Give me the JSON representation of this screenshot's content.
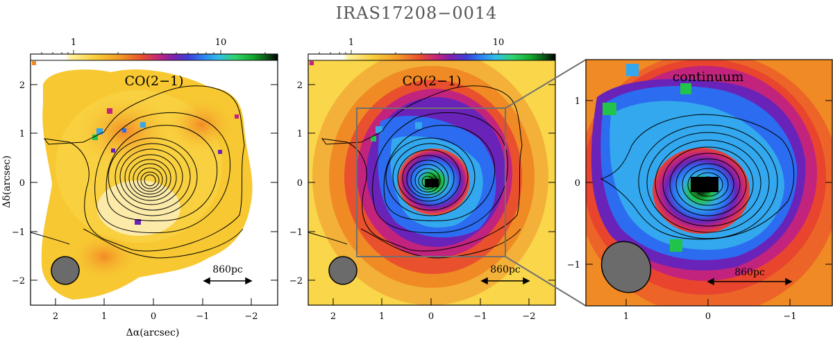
{
  "figure_title": "IRAS17208−0014",
  "colorbar_labels": [
    "1",
    "10"
  ],
  "panels": [
    {
      "line_label": "CO(2−1)",
      "x_ticks": [
        "2",
        "1",
        "0",
        "−1",
        "−2"
      ],
      "y_ticks": [
        "2",
        "1",
        "0",
        "−1",
        "−2"
      ],
      "xlabel": "Δα(arcsec)",
      "ylabel": "Δδ(arcsec)",
      "scalebar": "860pc"
    },
    {
      "line_label": "CO(2−1)",
      "x_ticks": [
        "2",
        "1",
        "0",
        "−1",
        "−2"
      ],
      "y_ticks": [
        "2",
        "1",
        "0",
        "−1",
        "−2"
      ],
      "scalebar": "860pc"
    },
    {
      "line_label": "continuum",
      "x_ticks": [
        "1",
        "0",
        "−1"
      ],
      "y_ticks": [
        "1",
        "0",
        "−1"
      ],
      "scalebar": "860pc"
    }
  ],
  "colors": {
    "panel1_bg": "#f7c832",
    "panel2_bg": "#f08a24",
    "panel3_bg": "#e8442e",
    "magenta": "#c2247d",
    "purple": "#6a23b8",
    "blue": "#2c6cf0",
    "cyan": "#33a8ee",
    "green": "#22c34a",
    "beam": "#6b6b6b",
    "zoom_box": "#707070"
  }
}
